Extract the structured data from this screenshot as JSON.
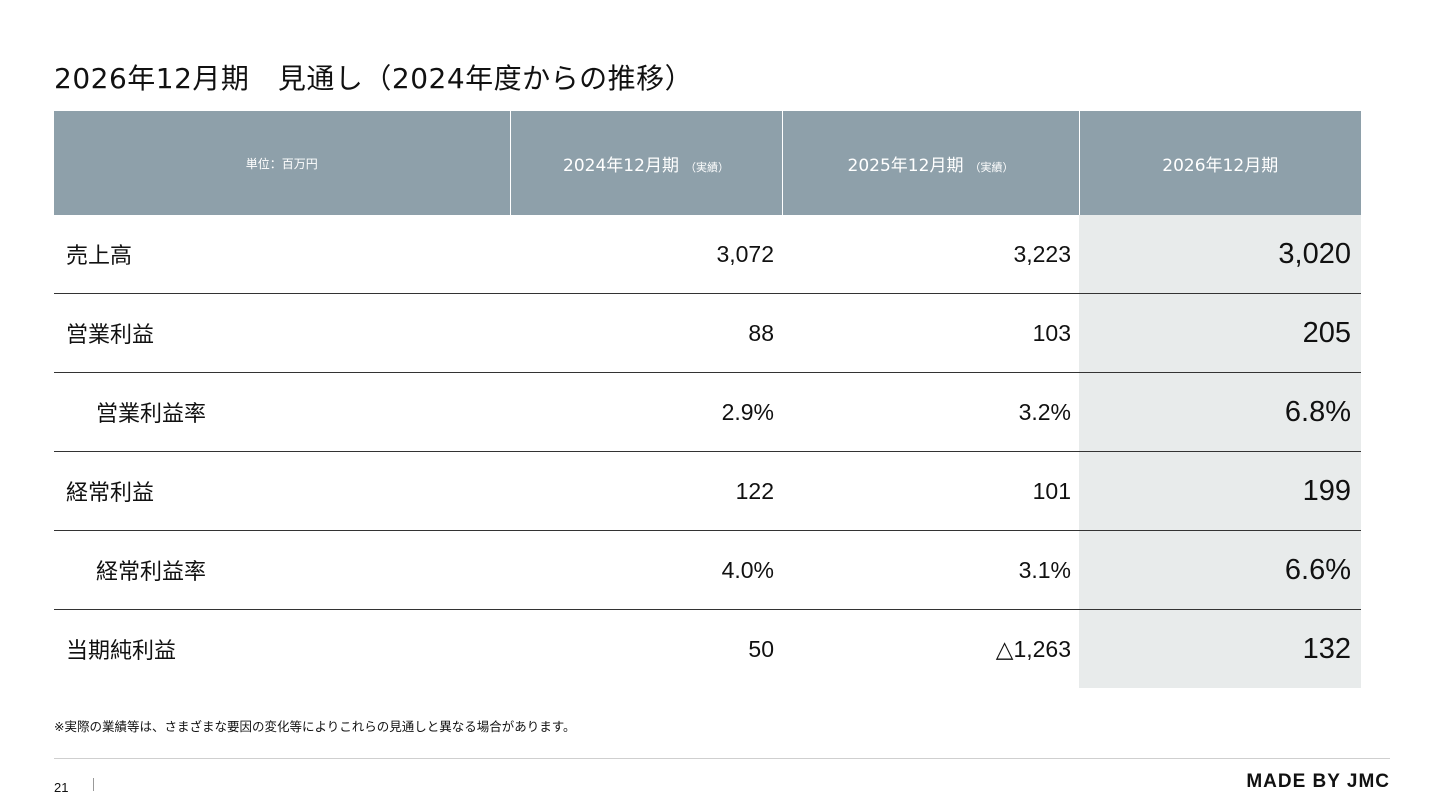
{
  "title": "2026年12月期　見通し（2024年度からの推移）",
  "table": {
    "unit_label": "単位：百万円",
    "columns": [
      {
        "label": "2024年12月期",
        "note": "（実績）"
      },
      {
        "label": "2025年12月期",
        "note": "（実績）"
      },
      {
        "label": "2026年12月期",
        "note": ""
      }
    ],
    "rows": [
      {
        "label": "売上高",
        "values": [
          "3,072",
          "3,223",
          "3,020"
        ]
      },
      {
        "label": "営業利益",
        "values": [
          "88",
          "103",
          "205"
        ]
      },
      {
        "label": "営業利益率",
        "values": [
          "2.9%",
          "3.2%",
          "6.8%"
        ]
      },
      {
        "label": "経常利益",
        "values": [
          "122",
          "101",
          "199"
        ]
      },
      {
        "label": "経常利益率",
        "values": [
          "4.0%",
          "3.1%",
          "6.6%"
        ]
      },
      {
        "label": "当期純利益",
        "values": [
          "50",
          "△1,263",
          "132"
        ]
      }
    ]
  },
  "footnote": "※実際の業績等は、さまざまな要因の変化等によりこれらの見通しと異なる場合があります。",
  "footer": {
    "page_number": "21",
    "brand": "MADE BY JMC"
  },
  "colors": {
    "header_bg": "#8ea0aa",
    "highlight_bg": "#e8ebeb"
  }
}
